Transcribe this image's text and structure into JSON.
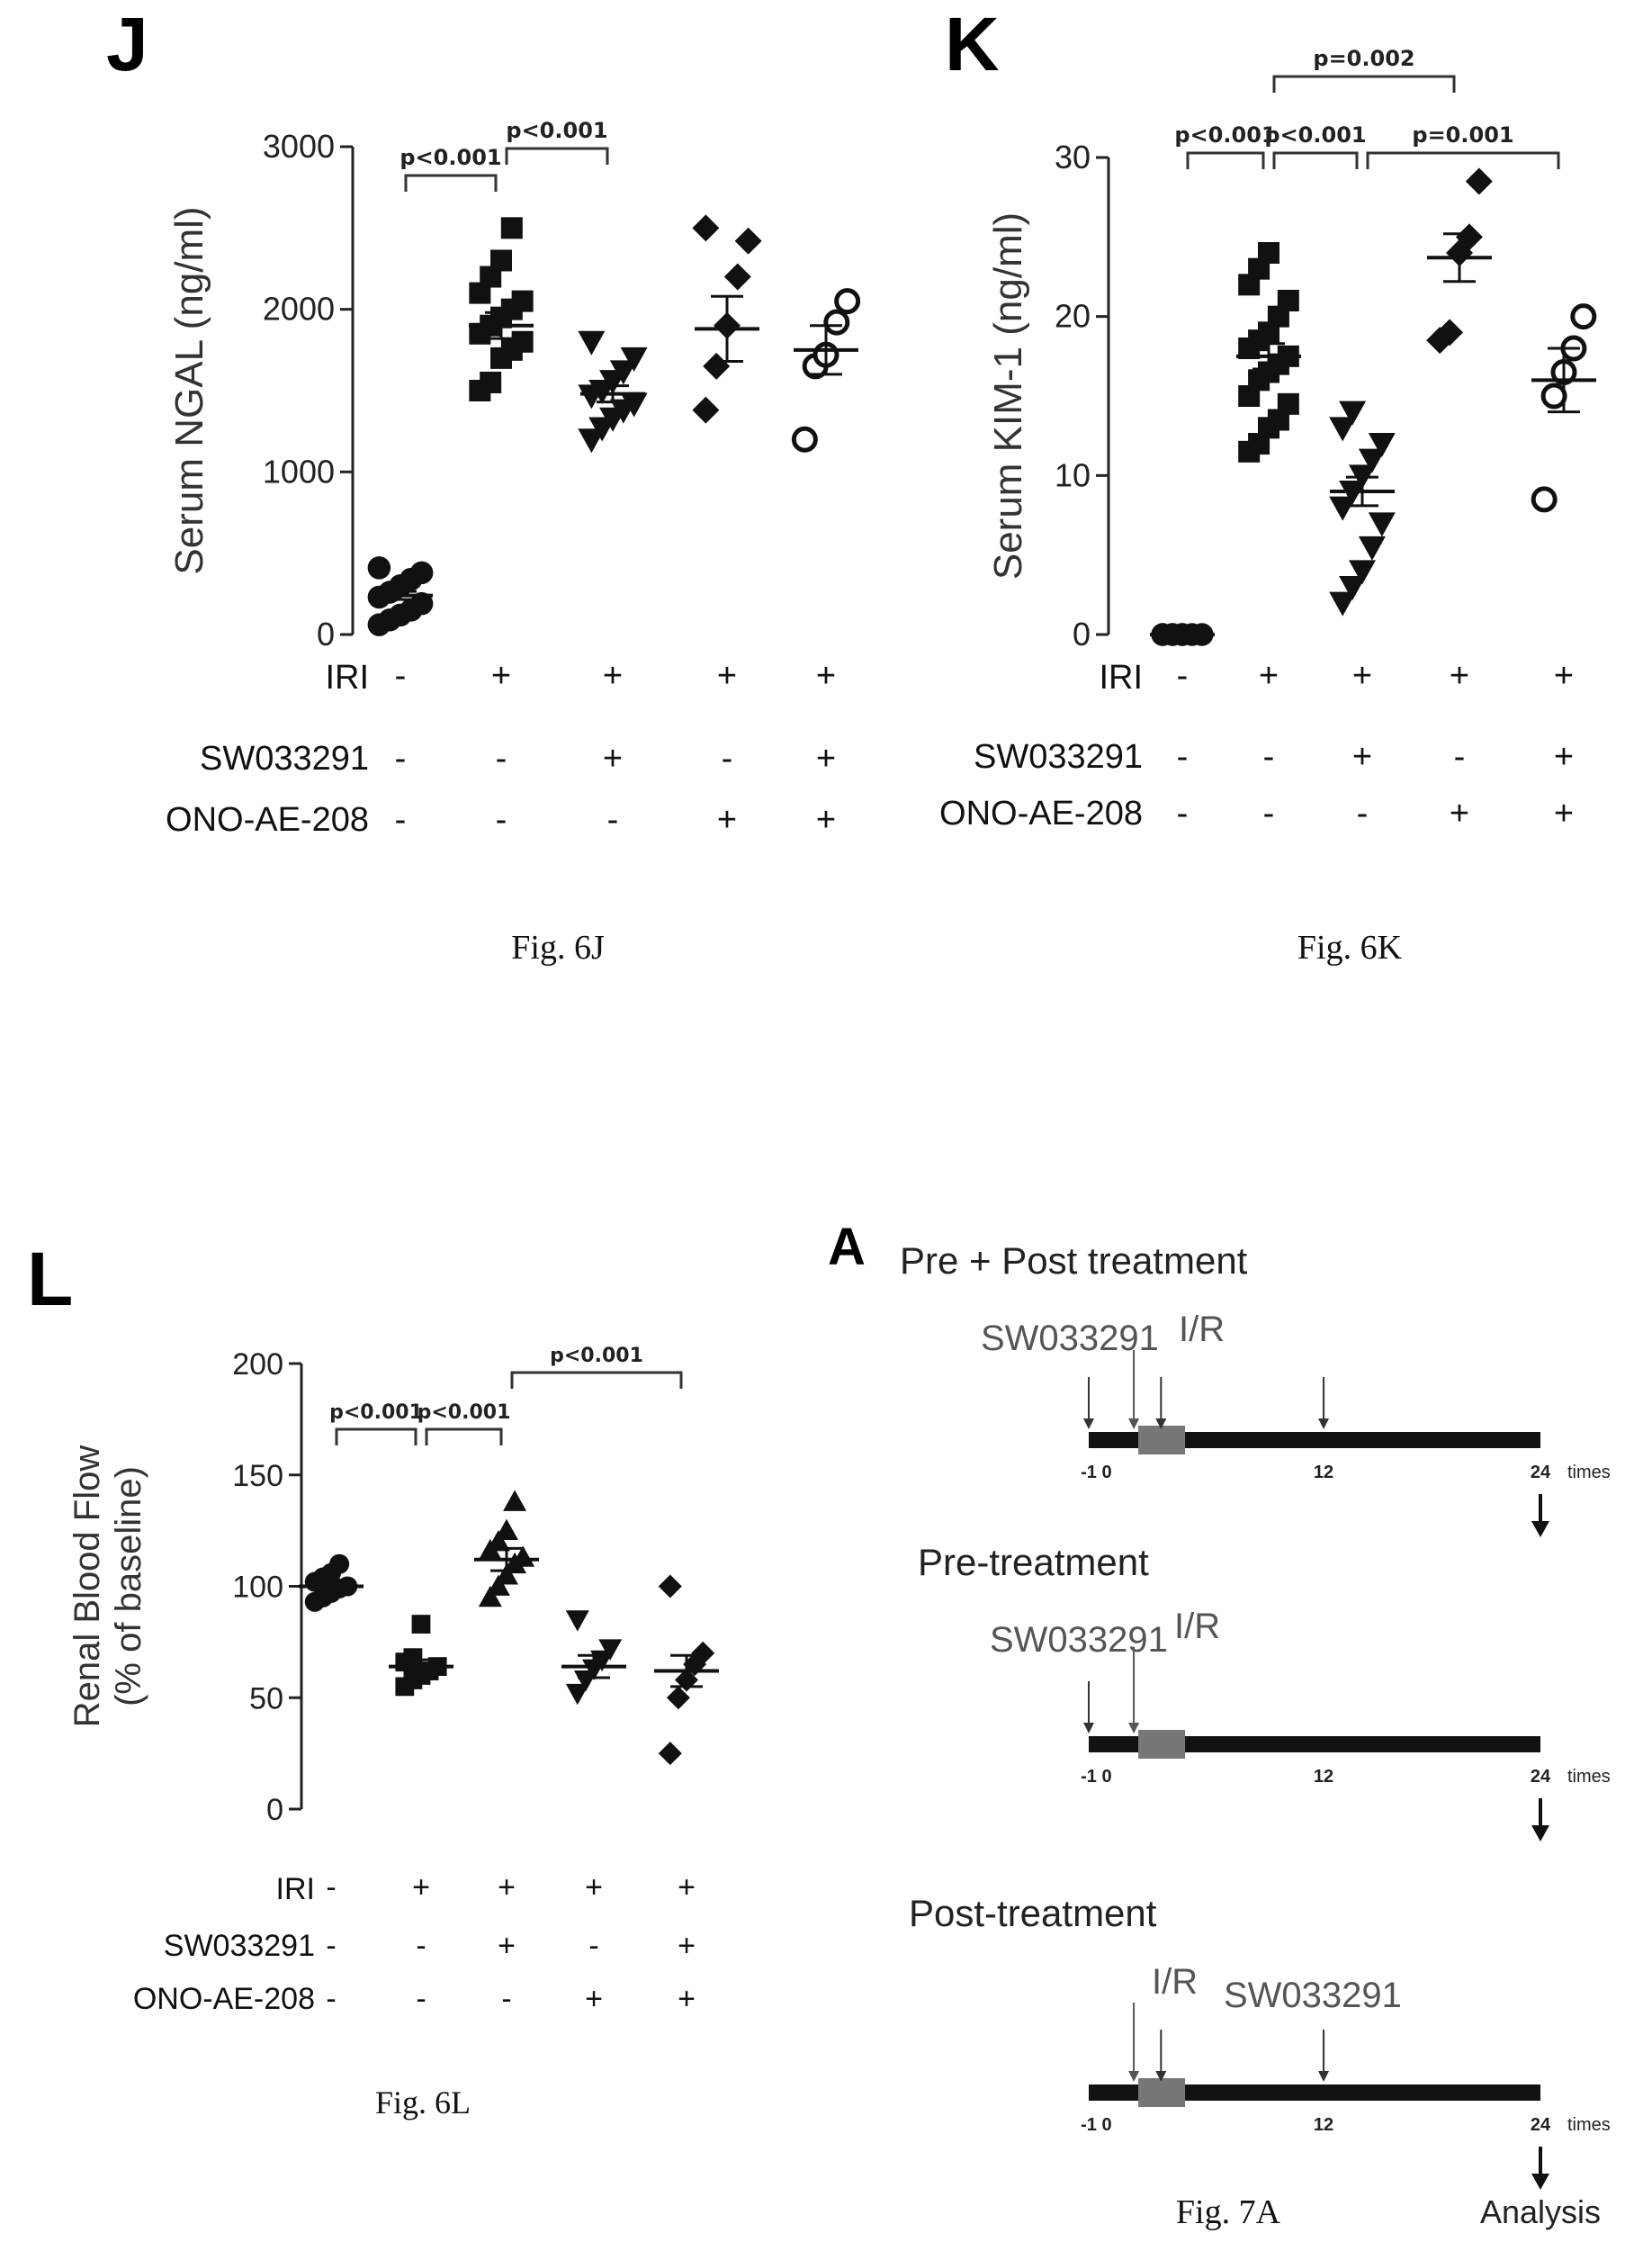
{
  "chart_data": [
    {
      "type": "scatter",
      "panel": "J",
      "caption": "Fig. 6J",
      "title": "",
      "ylabel": "Serum NGAL (ng/ml)",
      "ylim": [
        0,
        3000
      ],
      "yticks": [
        "0",
        "1000",
        "2000",
        "3000"
      ],
      "groups": [
        {
          "marker": "circle-filled",
          "mean": 240,
          "sem": 25,
          "values": [
            60,
            90,
            120,
            150,
            190,
            230,
            260,
            300,
            340,
            380,
            410
          ]
        },
        {
          "marker": "square-filled",
          "mean": 1900,
          "sem": 80,
          "values": [
            1500,
            1550,
            1700,
            1750,
            1800,
            1850,
            1900,
            1950,
            2000,
            2050,
            2100,
            2200,
            2300,
            2500
          ]
        },
        {
          "marker": "triangle-down-filled",
          "mean": 1480,
          "sem": 50,
          "values": [
            1200,
            1270,
            1330,
            1380,
            1420,
            1470,
            1500,
            1560,
            1620,
            1700,
            1800
          ]
        },
        {
          "marker": "diamond-filled",
          "mean": 1880,
          "sem": 200,
          "values": [
            1380,
            1650,
            1900,
            2200,
            2420,
            2500
          ]
        },
        {
          "marker": "circle-open",
          "mean": 1750,
          "sem": 150,
          "values": [
            1200,
            1650,
            1720,
            1920,
            2050
          ]
        }
      ],
      "comparisons": [
        {
          "label": "p<0.001",
          "from": 0,
          "to": 1
        },
        {
          "label": "p<0.001",
          "from": 1,
          "to": 2
        }
      ],
      "conditions": [
        {
          "label": "IRI",
          "signs": [
            "-",
            "+",
            "+",
            "+",
            "+"
          ]
        },
        {
          "label": "SW033291",
          "signs": [
            "-",
            "-",
            "+",
            "-",
            "+"
          ]
        },
        {
          "label": "ONO-AE-208",
          "signs": [
            "-",
            "-",
            "-",
            "+",
            "+"
          ]
        }
      ]
    },
    {
      "type": "scatter",
      "panel": "K",
      "caption": "Fig. 6K",
      "title": "",
      "ylabel": "Serum KIM-1 (ng/ml)",
      "ylim": [
        0,
        30
      ],
      "yticks": [
        "0",
        "10",
        "20",
        "30"
      ],
      "groups": [
        {
          "marker": "circle-filled",
          "mean": 0,
          "sem": 0,
          "values": [
            0,
            0,
            0,
            0,
            0,
            0,
            0,
            0
          ]
        },
        {
          "marker": "square-filled",
          "mean": 17.5,
          "sem": 0.8,
          "values": [
            11.5,
            12,
            13,
            13.5,
            14.5,
            15,
            16,
            16.5,
            17,
            17.5,
            18,
            18.5,
            19,
            20,
            21,
            22,
            23,
            24
          ]
        },
        {
          "marker": "triangle-down-filled",
          "mean": 9,
          "sem": 0.9,
          "values": [
            2,
            3,
            4,
            5.5,
            7,
            8,
            9,
            10,
            11,
            12,
            13,
            14
          ]
        },
        {
          "marker": "diamond-filled",
          "mean": 23.7,
          "sem": 1.5,
          "values": [
            18.5,
            19,
            24,
            25,
            28.5
          ]
        },
        {
          "marker": "circle-open",
          "mean": 16,
          "sem": 2,
          "values": [
            8.5,
            15,
            16.5,
            18,
            20
          ]
        }
      ],
      "comparisons": [
        {
          "label": "p<0.001",
          "from": 0,
          "to": 1
        },
        {
          "label": "p<0.001",
          "from": 1,
          "to": 2
        },
        {
          "label": "p=0.001",
          "from": 2,
          "to": 4
        },
        {
          "label": "p=0.002",
          "from": 1,
          "to": 3
        }
      ],
      "conditions": [
        {
          "label": "IRI",
          "signs": [
            "-",
            "+",
            "+",
            "+",
            "+"
          ]
        },
        {
          "label": "SW033291",
          "signs": [
            "-",
            "-",
            "+",
            "-",
            "+"
          ]
        },
        {
          "label": "ONO-AE-208",
          "signs": [
            "-",
            "-",
            "-",
            "+",
            "+"
          ]
        }
      ]
    },
    {
      "type": "scatter",
      "panel": "L",
      "caption": "Fig. 6L",
      "title": "",
      "ylabel_lines": [
        "Renal Blood Flow",
        "(% of baseline)"
      ],
      "ylim": [
        0,
        200
      ],
      "yticks": [
        "0",
        "50",
        "100",
        "150",
        "200"
      ],
      "groups": [
        {
          "marker": "circle-filled",
          "mean": 100,
          "sem": 2.5,
          "values": [
            93,
            95,
            97,
            99,
            100,
            102,
            104,
            106,
            110
          ]
        },
        {
          "marker": "square-filled",
          "mean": 64,
          "sem": 3,
          "values": [
            55,
            58,
            60,
            62,
            64,
            66,
            68,
            83
          ]
        },
        {
          "marker": "triangle-up-filled",
          "mean": 112,
          "sem": 5,
          "values": [
            95,
            100,
            105,
            110,
            113,
            116,
            120,
            125,
            138
          ]
        },
        {
          "marker": "triangle-down-filled",
          "mean": 64,
          "sem": 5,
          "values": [
            52,
            58,
            63,
            67,
            72,
            85
          ]
        },
        {
          "marker": "diamond-filled",
          "mean": 62,
          "sem": 7,
          "values": [
            25,
            50,
            58,
            65,
            70,
            100
          ]
        }
      ],
      "comparisons": [
        {
          "label": "p<0.001",
          "from": 0,
          "to": 1
        },
        {
          "label": "p<0.001",
          "from": 1,
          "to": 2
        },
        {
          "label": "p<0.001",
          "from": 2,
          "to": 4
        }
      ],
      "conditions": [
        {
          "label": "IRI",
          "signs": [
            "-",
            "+",
            "+",
            "+",
            "+"
          ]
        },
        {
          "label": "SW033291",
          "signs": [
            "-",
            "-",
            "+",
            "-",
            "+"
          ]
        },
        {
          "label": "ONO-AE-208",
          "signs": [
            "-",
            "-",
            "-",
            "+",
            "+"
          ]
        }
      ]
    }
  ],
  "figure7a": {
    "panel": "A",
    "caption": "Fig. 7A",
    "tick_labels": [
      "-1",
      "0",
      "12",
      "24"
    ],
    "axis_unit": "times",
    "drug": "SW033291",
    "ir_label": "I/R",
    "end_label": "Analysis",
    "protocols": [
      {
        "title": "Pre + Post treatment",
        "doses": [
          -1,
          3,
          12
        ]
      },
      {
        "title": "Pre-treatment",
        "doses": [
          -1
        ]
      },
      {
        "title": "Post-treatment",
        "doses": [
          3,
          12
        ]
      }
    ]
  }
}
